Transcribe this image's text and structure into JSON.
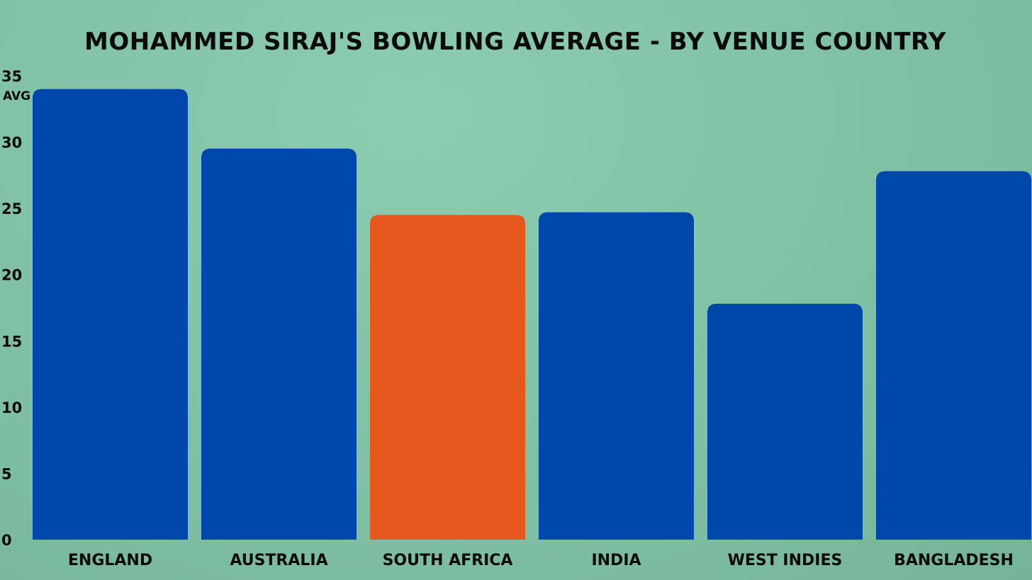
{
  "chart_data": {
    "type": "bar",
    "title": "MOHAMMED SIRAJ'S BOWLING AVERAGE - BY VENUE COUNTRY",
    "xlabel": "",
    "ylabel": "AVG",
    "ylim": [
      0,
      35
    ],
    "yticks": [
      "0",
      "5",
      "10",
      "15",
      "20",
      "25",
      "30",
      "35"
    ],
    "grid": false,
    "categories": [
      "ENGLAND",
      "AUSTRALIA",
      "SOUTH AFRICA",
      "INDIA",
      "WEST INDIES",
      "BANGLADESH"
    ],
    "values": [
      34.0,
      29.5,
      24.5,
      24.7,
      17.8,
      27.8
    ],
    "colors": [
      "#0047ab",
      "#0047ab",
      "#e5571c",
      "#0047ab",
      "#0047ab",
      "#0047ab"
    ]
  }
}
